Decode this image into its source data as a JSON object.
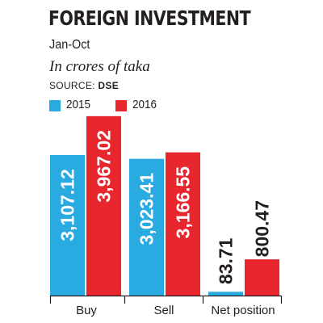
{
  "chart_data": {
    "type": "bar",
    "title": "FOREIGN INVESTMENT",
    "subtitle": "Jan-Oct",
    "unit_note": "In crores of taka",
    "source_label": "SOURCE:",
    "source_value": "DSE",
    "categories": [
      "Buy",
      "Sell",
      "Net position"
    ],
    "series": [
      {
        "name": "2015",
        "color": "#29aae1",
        "values": [
          3107.12,
          3023.41,
          83.71
        ],
        "labels": [
          "3,107.12",
          "3,023.41",
          "83.71"
        ]
      },
      {
        "name": "2016",
        "color": "#e8262d",
        "values": [
          3967.02,
          3166.55,
          800.47
        ],
        "labels": [
          "3,967.02",
          "3,166.55",
          "800.47"
        ]
      }
    ],
    "label_placement": [
      "inside",
      "inside",
      "above"
    ],
    "ylim": [
      0,
      4000
    ],
    "grid": false,
    "legend_position": "top-left"
  }
}
